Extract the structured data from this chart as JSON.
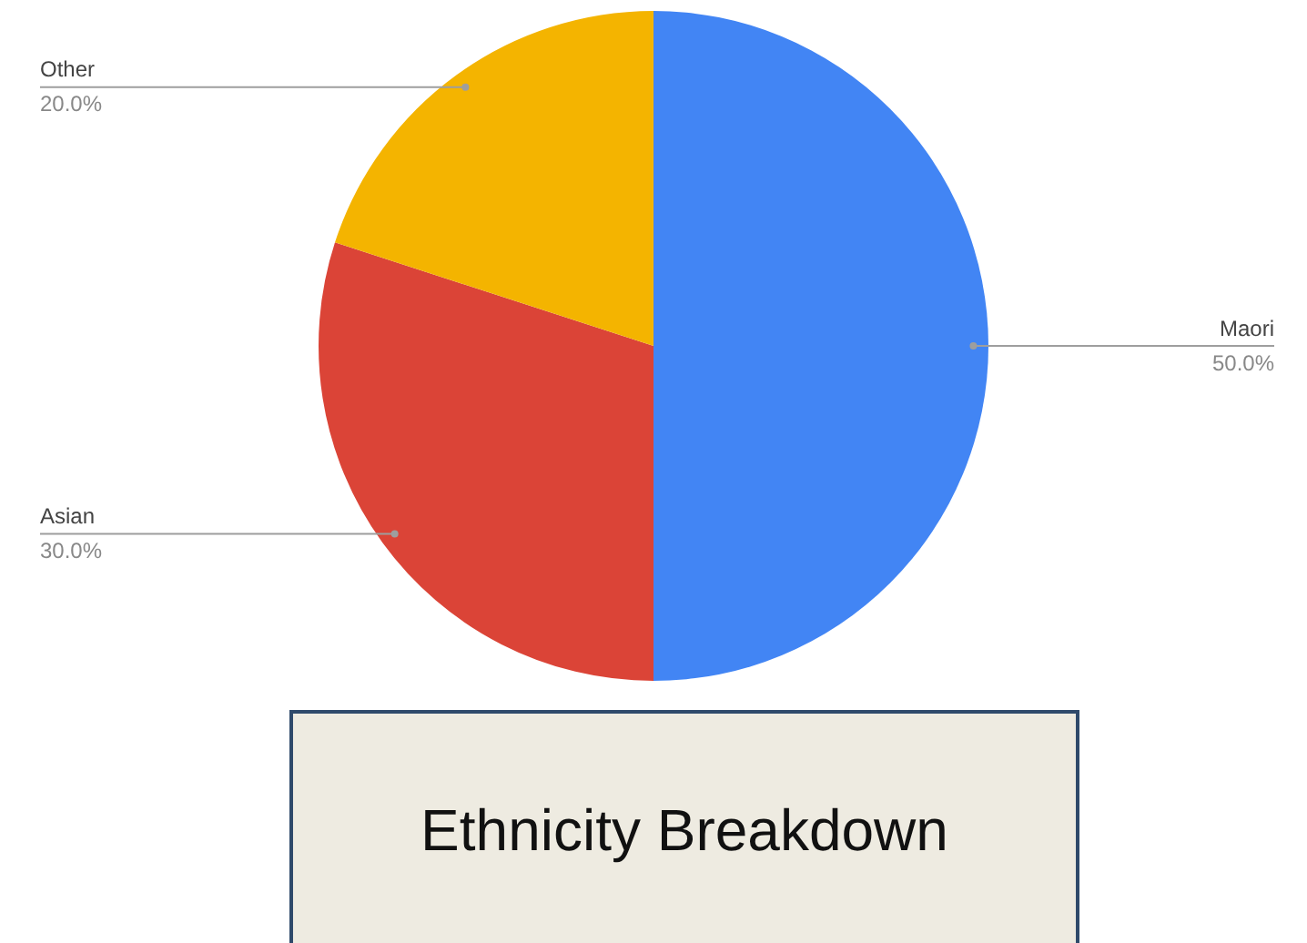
{
  "chart_data": {
    "type": "pie",
    "title": "Ethnicity Breakdown",
    "categories": [
      "Maori",
      "Asian",
      "Other"
    ],
    "values": [
      50,
      30,
      20
    ],
    "colors": [
      "#4285f4",
      "#db4437",
      "#f4b400"
    ],
    "value_labels": [
      "50.0%",
      "30.0%",
      "20.0%"
    ],
    "legend": false
  }
}
